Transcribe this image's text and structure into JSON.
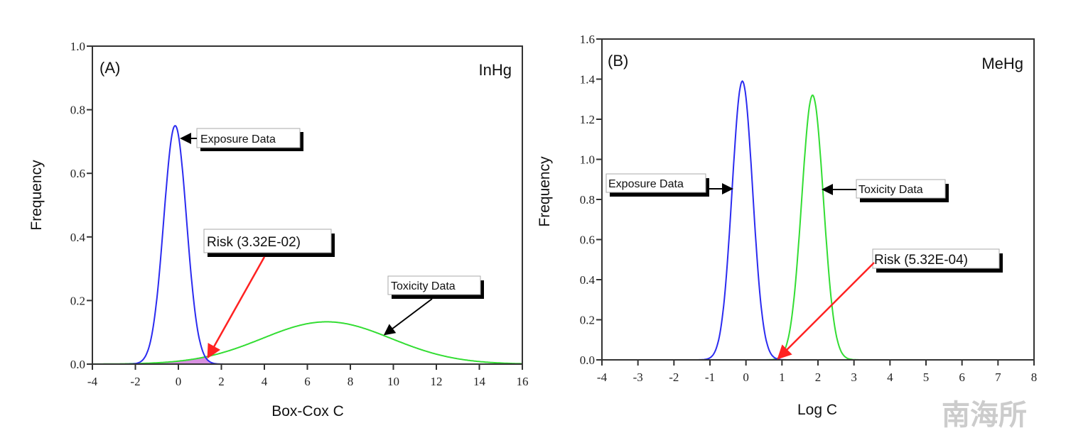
{
  "chart_data": [
    {
      "type": "line",
      "panel_label": "(A)",
      "title": "InHg",
      "xlabel": "Box-Cox C",
      "ylabel": "Frequency",
      "xlim": [
        -4,
        16
      ],
      "ylim": [
        0,
        1.0
      ],
      "xticks": [
        "-4",
        "-2",
        "0",
        "2",
        "4",
        "6",
        "8",
        "10",
        "12",
        "14",
        "16"
      ],
      "yticks": [
        "0.0",
        "0.2",
        "0.4",
        "0.6",
        "0.8",
        "1.0"
      ],
      "series": [
        {
          "name": "Exposure Data",
          "distribution": "normal",
          "mean": -0.15,
          "sd": 0.53,
          "peak": 0.75,
          "color": "#2b2bf0"
        },
        {
          "name": "Toxicity Data",
          "distribution": "normal",
          "mean": 6.9,
          "sd": 3.0,
          "peak": 0.133,
          "color": "#33dd33"
        }
      ],
      "overlap_color": "#d890e0",
      "annotations": {
        "exposure": "Exposure Data",
        "toxicity": "Toxicity Data",
        "risk": "Risk (3.32E-02)"
      },
      "risk_value": 0.0332
    },
    {
      "type": "line",
      "panel_label": "(B)",
      "title": "MeHg",
      "xlabel": "Log C",
      "ylabel": "Frequency",
      "xlim": [
        -4,
        8
      ],
      "ylim": [
        0,
        1.6
      ],
      "xticks": [
        "-4",
        "-3",
        "-2",
        "-1",
        "0",
        "1",
        "2",
        "3",
        "4",
        "5",
        "6",
        "7",
        "8"
      ],
      "yticks": [
        "0.0",
        "0.2",
        "0.4",
        "0.6",
        "0.8",
        "1.0",
        "1.2",
        "1.4",
        "1.6"
      ],
      "series": [
        {
          "name": "Exposure Data",
          "distribution": "normal",
          "mean": -0.1,
          "sd": 0.287,
          "peak": 1.39,
          "color": "#2b2bf0"
        },
        {
          "name": "Toxicity Data",
          "distribution": "normal",
          "mean": 1.85,
          "sd": 0.302,
          "peak": 1.32,
          "color": "#33dd33"
        }
      ],
      "overlap_color": "#d890e0",
      "annotations": {
        "exposure": "Exposure Data",
        "toxicity": "Toxicity Data",
        "risk": "Risk (5.32E-04)"
      },
      "risk_value": 0.000532
    }
  ],
  "watermark": "南海所"
}
